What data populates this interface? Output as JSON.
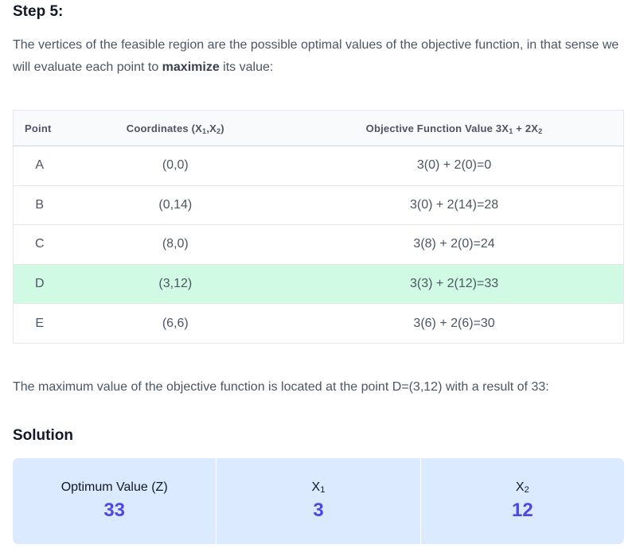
{
  "step": {
    "title": "Step 5:"
  },
  "intro": {
    "before": "The vertices of the feasible region are the possible optimal values of the objective function, in that sense we will evaluate each point to ",
    "bold": "maximize",
    "after": " its value:"
  },
  "table": {
    "headers": {
      "point": "Point",
      "coord_prefix": "Coordinates (X",
      "coord_sub1": "1",
      "coord_mid": ",X",
      "coord_sub2": "2",
      "coord_suffix": ")",
      "obj_prefix": "Objective Function Value 3X",
      "obj_sub1": "1",
      "obj_mid": " + 2X",
      "obj_sub2": "2"
    },
    "rows": [
      {
        "point": "A",
        "coords": "(0,0)",
        "value": "3(0) + 2(0)=0"
      },
      {
        "point": "B",
        "coords": "(0,14)",
        "value": "3(0) + 2(14)=28"
      },
      {
        "point": "C",
        "coords": "(8,0)",
        "value": "3(8) + 2(0)=24"
      },
      {
        "point": "D",
        "coords": "(3,12)",
        "value": "3(3) + 2(12)=33"
      },
      {
        "point": "E",
        "coords": "(6,6)",
        "value": "3(6) + 2(6)=30"
      }
    ],
    "highlight_color": "#d1fae5"
  },
  "conclusion": "The maximum value of the objective function is located at the point D=(3,12) with a result of 33:",
  "solution": {
    "title": "Solution",
    "z": {
      "label": "Optimum Value (Z)",
      "value": "33"
    },
    "x1": {
      "label_base": "X",
      "label_sub": "1",
      "value": "3"
    },
    "x2": {
      "label_base": "X",
      "label_sub": "2",
      "value": "12"
    },
    "box_color": "#dbeafe",
    "value_color": "#4f46e5"
  }
}
